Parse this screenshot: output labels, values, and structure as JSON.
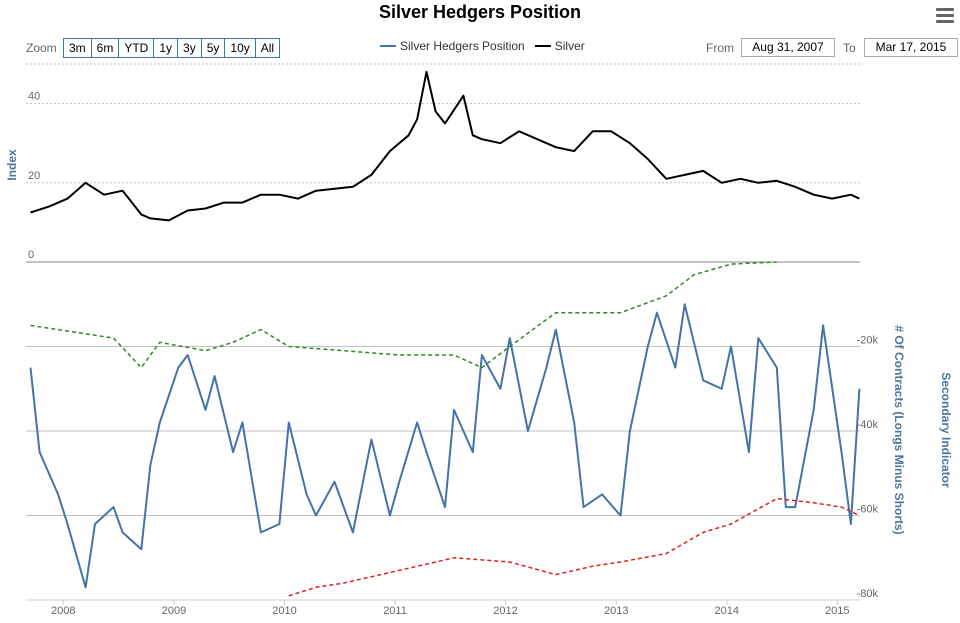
{
  "header": {
    "title": "Silver Hedgers Position"
  },
  "toolbar": {
    "zoom_label": "Zoom",
    "zoom_buttons": [
      "3m",
      "6m",
      "YTD",
      "1y",
      "3y",
      "5y",
      "10y",
      "All"
    ],
    "from_label": "From",
    "from_value": "Aug 31, 2007",
    "to_label": "To",
    "to_value": "Mar 17, 2015"
  },
  "colors": {
    "hedgers": "#4572a7",
    "silver": "#000000",
    "green_band": "#2e8b22",
    "red_band": "#e0201b",
    "grid": "#c0c0c0"
  },
  "chart_data": {
    "type": "line",
    "title": "Silver Hedgers Position",
    "x_range": [
      "2007-08-31",
      "2015-03-17"
    ],
    "x_ticks": [
      "2008",
      "2009",
      "2010",
      "2011",
      "2012",
      "2013",
      "2014",
      "2015"
    ],
    "legend": {
      "placement": "top-center",
      "entries": [
        "Silver Hedgers Position",
        "Silver"
      ]
    },
    "upper_panel": {
      "ylabel": "Index",
      "ylim": [
        0,
        50
      ],
      "yticks": [
        "0",
        "20",
        "40"
      ],
      "series": [
        {
          "name": "Silver",
          "color": "#000000",
          "x": [
            "2007-09",
            "2007-11",
            "2008-01",
            "2008-03",
            "2008-05",
            "2008-07",
            "2008-09",
            "2008-10",
            "2008-12",
            "2009-02",
            "2009-04",
            "2009-06",
            "2009-08",
            "2009-10",
            "2009-12",
            "2010-02",
            "2010-04",
            "2010-06",
            "2010-08",
            "2010-10",
            "2010-12",
            "2011-02",
            "2011-03",
            "2011-04",
            "2011-05",
            "2011-06",
            "2011-08",
            "2011-09",
            "2011-10",
            "2011-12",
            "2012-02",
            "2012-04",
            "2012-06",
            "2012-08",
            "2012-10",
            "2012-12",
            "2013-02",
            "2013-04",
            "2013-06",
            "2013-08",
            "2013-10",
            "2013-12",
            "2014-02",
            "2014-04",
            "2014-06",
            "2014-08",
            "2014-10",
            "2014-12",
            "2015-02",
            "2015-03"
          ],
          "y": [
            12.5,
            14,
            16,
            20,
            17,
            18,
            12,
            11,
            10.5,
            13,
            13.5,
            15,
            15,
            17,
            17,
            16,
            18,
            18.5,
            19,
            22,
            28,
            32,
            36,
            48,
            38,
            35,
            42,
            32,
            31,
            30,
            33,
            31,
            29,
            28,
            33,
            33,
            30,
            26,
            21,
            22,
            23,
            20,
            21,
            20,
            20.5,
            19,
            17,
            16,
            17,
            16
          ]
        }
      ]
    },
    "lower_panel": {
      "ylabel": "# Of Contracts (Longs Minus Shorts)",
      "ylabel_right": "Secondary Indicator",
      "ylim": [
        -80000,
        0
      ],
      "yticks": [
        "-20k",
        "-40k",
        "-60k",
        "-80k"
      ],
      "series": [
        {
          "name": "Silver Hedgers Position",
          "color": "#4572a7",
          "x": [
            "2007-09",
            "2007-10",
            "2007-12",
            "2008-01",
            "2008-03",
            "2008-04",
            "2008-06",
            "2008-07",
            "2008-09",
            "2008-10",
            "2008-11",
            "2009-01",
            "2009-02",
            "2009-04",
            "2009-05",
            "2009-07",
            "2009-08",
            "2009-10",
            "2009-12",
            "2010-01",
            "2010-03",
            "2010-04",
            "2010-06",
            "2010-08",
            "2010-10",
            "2010-12",
            "2011-01",
            "2011-03",
            "2011-04",
            "2011-06",
            "2011-07",
            "2011-09",
            "2011-10",
            "2011-12",
            "2012-01",
            "2012-03",
            "2012-05",
            "2012-06",
            "2012-08",
            "2012-09",
            "2012-11",
            "2013-01",
            "2013-02",
            "2013-04",
            "2013-05",
            "2013-07",
            "2013-08",
            "2013-10",
            "2013-12",
            "2014-01",
            "2014-03",
            "2014-04",
            "2014-06",
            "2014-07",
            "2014-08",
            "2014-10",
            "2014-11",
            "2015-01",
            "2015-02",
            "2015-03"
          ],
          "y": [
            -25000,
            -45000,
            -55000,
            -62000,
            -77000,
            -62000,
            -58000,
            -64000,
            -68000,
            -48000,
            -38000,
            -25000,
            -22000,
            -35000,
            -27000,
            -45000,
            -38000,
            -64000,
            -62000,
            -38000,
            -55000,
            -60000,
            -52000,
            -64000,
            -42000,
            -60000,
            -52000,
            -38000,
            -45000,
            -58000,
            -35000,
            -45000,
            -22000,
            -30000,
            -18000,
            -40000,
            -25000,
            -16000,
            -38000,
            -58000,
            -55000,
            -60000,
            -40000,
            -20000,
            -12000,
            -25000,
            -10000,
            -28000,
            -30000,
            -20000,
            -45000,
            -18000,
            -25000,
            -58000,
            -58000,
            -35000,
            -15000,
            -45000,
            -62000,
            -30000
          ]
        },
        {
          "name": "Upper band",
          "color": "#2e8b22",
          "style": "dashed",
          "x": [
            "2007-09",
            "2008-03",
            "2008-06",
            "2008-09",
            "2008-11",
            "2009-04",
            "2009-07",
            "2009-10",
            "2010-01",
            "2010-07",
            "2011-01",
            "2011-07",
            "2011-10",
            "2012-01",
            "2012-06",
            "2013-01",
            "2013-06",
            "2013-09",
            "2014-01",
            "2014-06"
          ],
          "y": [
            -15000,
            -17000,
            -18000,
            -25000,
            -19000,
            -21000,
            -19000,
            -16000,
            -20000,
            -21000,
            -22000,
            -22000,
            -25000,
            -20000,
            -12000,
            -12000,
            -8000,
            -3000,
            -500,
            0
          ]
        },
        {
          "name": "Lower band",
          "color": "#e0201b",
          "style": "dashed",
          "x": [
            "2010-01",
            "2010-04",
            "2010-07",
            "2011-01",
            "2011-07",
            "2012-01",
            "2012-06",
            "2012-10",
            "2013-01",
            "2013-06",
            "2013-10",
            "2014-01",
            "2014-06",
            "2014-10",
            "2015-01",
            "2015-03"
          ],
          "y": [
            -79000,
            -77000,
            -76000,
            -73000,
            -70000,
            -71000,
            -74000,
            -72000,
            -71000,
            -69000,
            -64000,
            -62000,
            -56000,
            -57000,
            -58000,
            -60000
          ]
        }
      ]
    }
  }
}
